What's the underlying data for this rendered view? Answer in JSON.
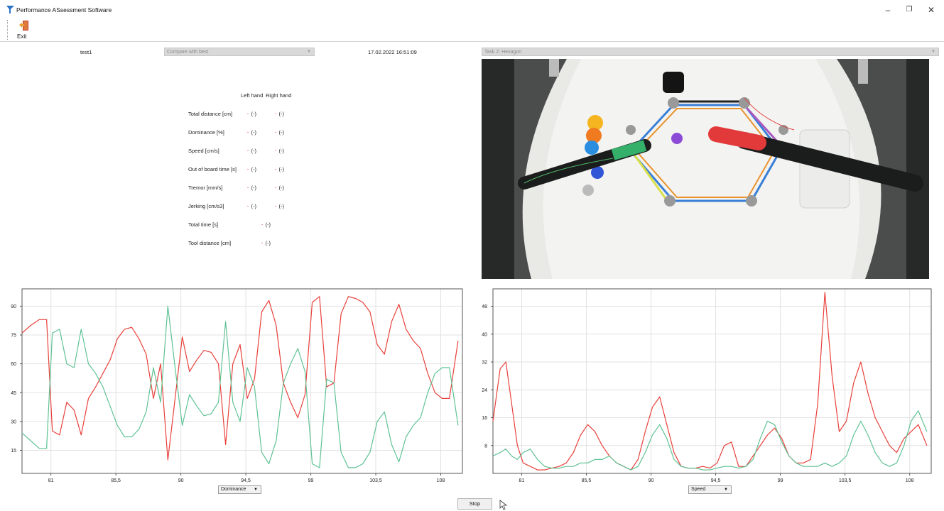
{
  "window": {
    "title": "Performance ASsessment Software",
    "controls": {
      "minimize": "–",
      "restore": "❐",
      "close": "✕"
    }
  },
  "toolbar": {
    "exit_label": "Exit"
  },
  "info": {
    "session_name": "test1",
    "compare_value": "Compare with best",
    "datetime": "17.02.2022 16:51:09",
    "task_value": "Task 2: Hexagon"
  },
  "metrics": {
    "headers": {
      "left": "Left hand",
      "right": "Right hand"
    },
    "rows": [
      {
        "label": "Total distance [cm]",
        "left": "(-)",
        "right": "(-)"
      },
      {
        "label": "Dominance [%]",
        "left": "(-)",
        "right": "(-)"
      },
      {
        "label": "Speed [cm/s]",
        "left": "(-)",
        "right": "(-)"
      },
      {
        "label": "Out of board time [s]",
        "left": "(-)",
        "right": "(-)"
      },
      {
        "label": "Tremor [mm/s]",
        "left": "(-)",
        "right": "(-)"
      },
      {
        "label": "Jerking [cm/s3]",
        "left": "(-)",
        "right": "(-)"
      },
      {
        "label": "Total time [s]",
        "value": "(-)"
      },
      {
        "label": "Tool distance [cm]",
        "value": "(-)"
      }
    ]
  },
  "colors": {
    "red_series": "#e8403a",
    "green_series": "#5fc294",
    "accent_dot": "#e04040"
  },
  "left_chart": {
    "selector_value": "Dominance"
  },
  "right_chart": {
    "selector_value": "Speed"
  },
  "stop_label": "Stop",
  "chart_data": [
    {
      "type": "line",
      "title": "",
      "xlabel": "",
      "ylabel": "",
      "x_ticks": [
        "81",
        "85,5",
        "90",
        "94,5",
        "99",
        "103,5",
        "108"
      ],
      "y_ticks": [
        "15",
        "30",
        "45",
        "60",
        "75",
        "90"
      ],
      "xlim": [
        79,
        109.5
      ],
      "ylim": [
        3,
        99
      ],
      "grid": true,
      "series": [
        {
          "color": "#e8403a",
          "x": [
            79,
            79.6,
            80.2,
            80.7,
            81.1,
            81.6,
            82.1,
            82.6,
            83.1,
            83.6,
            84.1,
            84.6,
            85.1,
            85.6,
            86.1,
            86.6,
            87.1,
            87.6,
            88.1,
            88.6,
            89.1,
            89.6,
            90.1,
            90.6,
            91.1,
            91.6,
            92.1,
            92.6,
            93.1,
            93.6,
            94.1,
            94.6,
            95.1,
            95.6,
            96.1,
            96.6,
            97.1,
            97.6,
            98.1,
            98.6,
            99.1,
            99.6,
            100.1,
            100.6,
            101.1,
            101.6,
            102.1,
            102.6,
            103.1,
            103.6,
            104.1,
            104.6,
            105.1,
            105.6,
            106.1,
            106.6,
            107.1,
            107.6,
            108.1,
            108.6,
            109.2
          ],
          "values": [
            76,
            80,
            83,
            83,
            25,
            23,
            40,
            36,
            23,
            42,
            48,
            55,
            62,
            73,
            78,
            79,
            73,
            65,
            42,
            60,
            10,
            42,
            74,
            56,
            62,
            67,
            66,
            60,
            18,
            60,
            70,
            42,
            52,
            87,
            93,
            80,
            50,
            40,
            32,
            44,
            92,
            95,
            48,
            50,
            86,
            95,
            94,
            92,
            87,
            70,
            65,
            82,
            91,
            78,
            72,
            68,
            55,
            45,
            42,
            42,
            72
          ]
        },
        {
          "color": "#5fc294",
          "x": [
            79,
            79.6,
            80.2,
            80.7,
            81.1,
            81.6,
            82.1,
            82.6,
            83.1,
            83.6,
            84.1,
            84.6,
            85.1,
            85.6,
            86.1,
            86.6,
            87.1,
            87.6,
            88.1,
            88.6,
            89.1,
            89.6,
            90.1,
            90.6,
            91.1,
            91.6,
            92.1,
            92.6,
            93.1,
            93.6,
            94.1,
            94.6,
            95.1,
            95.6,
            96.1,
            96.6,
            97.1,
            97.6,
            98.1,
            98.6,
            99.1,
            99.6,
            100.1,
            100.6,
            101.1,
            101.6,
            102.1,
            102.6,
            103.1,
            103.6,
            104.1,
            104.6,
            105.1,
            105.6,
            106.1,
            106.6,
            107.1,
            107.6,
            108.1,
            108.6,
            109.2
          ],
          "values": [
            24,
            20,
            16,
            16,
            76,
            78,
            60,
            58,
            78,
            60,
            55,
            48,
            38,
            28,
            22,
            22,
            26,
            35,
            58,
            40,
            90,
            58,
            28,
            44,
            38,
            33,
            34,
            40,
            82,
            40,
            30,
            58,
            48,
            14,
            8,
            20,
            50,
            60,
            68,
            56,
            8,
            6,
            52,
            50,
            14,
            6,
            6,
            8,
            14,
            30,
            35,
            18,
            9,
            22,
            28,
            32,
            45,
            55,
            58,
            58,
            28
          ]
        }
      ]
    },
    {
      "type": "line",
      "title": "",
      "xlabel": "",
      "ylabel": "",
      "x_ticks": [
        "81",
        "85,5",
        "90",
        "94,5",
        "99",
        "103,5",
        "108"
      ],
      "y_ticks": [
        "8",
        "16",
        "24",
        "32",
        "40",
        "48"
      ],
      "xlim": [
        79,
        109.5
      ],
      "ylim": [
        0,
        53
      ],
      "grid": true,
      "series": [
        {
          "color": "#e8403a",
          "x": [
            79,
            79.5,
            79.9,
            80.3,
            80.7,
            81.1,
            81.6,
            82.1,
            82.6,
            83.1,
            83.6,
            84.1,
            84.6,
            85.1,
            85.6,
            86.1,
            86.6,
            87.1,
            87.6,
            88.1,
            88.6,
            89.1,
            89.6,
            90.1,
            90.6,
            91.1,
            91.6,
            92.1,
            92.6,
            93.1,
            93.6,
            94.1,
            94.6,
            95.1,
            95.6,
            96.1,
            96.6,
            97.1,
            97.6,
            98.1,
            98.6,
            99.1,
            99.6,
            100.1,
            100.6,
            101.1,
            101.6,
            102.1,
            102.6,
            103.1,
            103.6,
            104.1,
            104.6,
            105.1,
            105.6,
            106.1,
            106.6,
            107.1,
            107.6,
            108.1,
            108.6,
            109.2
          ],
          "values": [
            15,
            30,
            32,
            20,
            8,
            3,
            2,
            1,
            1,
            1.5,
            2,
            3,
            6,
            11,
            14,
            12,
            8,
            5,
            3,
            2,
            1,
            4,
            12,
            19,
            22,
            14,
            6,
            2,
            1.5,
            1.5,
            2,
            1.5,
            3,
            8,
            9,
            2,
            2,
            5,
            8,
            11,
            13,
            10,
            5,
            3,
            3,
            4,
            20,
            52,
            28,
            12,
            15,
            26,
            32,
            23,
            16,
            12,
            8,
            6,
            10,
            12,
            14,
            8
          ]
        },
        {
          "color": "#5fc294",
          "x": [
            79,
            79.5,
            79.9,
            80.3,
            80.7,
            81.1,
            81.6,
            82.1,
            82.6,
            83.1,
            83.6,
            84.1,
            84.6,
            85.1,
            85.6,
            86.1,
            86.6,
            87.1,
            87.6,
            88.1,
            88.6,
            89.1,
            89.6,
            90.1,
            90.6,
            91.1,
            91.6,
            92.1,
            92.6,
            93.1,
            93.6,
            94.1,
            94.6,
            95.1,
            95.6,
            96.1,
            96.6,
            97.1,
            97.6,
            98.1,
            98.6,
            99.1,
            99.6,
            100.1,
            100.6,
            101.1,
            101.6,
            102.1,
            102.6,
            103.1,
            103.6,
            104.1,
            104.6,
            105.1,
            105.6,
            106.1,
            106.6,
            107.1,
            107.6,
            108.1,
            108.6,
            109.2
          ],
          "values": [
            5,
            6,
            7,
            5,
            4,
            6,
            7,
            4,
            2,
            1.5,
            1.5,
            2,
            2,
            3,
            3,
            4,
            4,
            5,
            3,
            2,
            1,
            2,
            6,
            11,
            14,
            10,
            4,
            2,
            1.5,
            1.5,
            1,
            1,
            1.5,
            2,
            2,
            1.5,
            2,
            4,
            10,
            15,
            14,
            9,
            5,
            3,
            2,
            2,
            2,
            3,
            2,
            3,
            5,
            11,
            15,
            11,
            6,
            3,
            2,
            3,
            8,
            15,
            18,
            12
          ]
        }
      ]
    }
  ]
}
